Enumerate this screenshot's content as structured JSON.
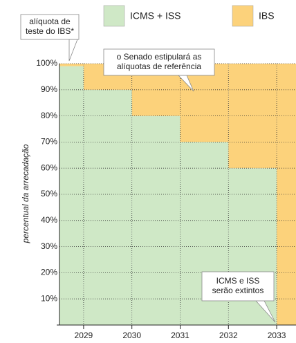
{
  "chart_data": {
    "type": "step-area",
    "y_label": "percentual da arrecadação",
    "x": [
      2028.5,
      2029,
      2030,
      2031,
      2032,
      2033
    ],
    "series": [
      {
        "name": "ICMS + ISS",
        "color": "#cfe8c6",
        "values": [
          99,
          90,
          80,
          70,
          60,
          0
        ]
      },
      {
        "name": "IBS",
        "color": "#fcd27b",
        "values": [
          1,
          10,
          20,
          30,
          40,
          100
        ]
      }
    ],
    "xlim": [
      2028.5,
      2033.4
    ],
    "ylim": [
      0,
      100
    ],
    "xticks": [
      2029,
      2030,
      2031,
      2032,
      2033
    ],
    "yticks": [
      {
        "value": 10,
        "label": "10%"
      },
      {
        "value": 20,
        "label": "20%"
      },
      {
        "value": 30,
        "label": "30%"
      },
      {
        "value": 40,
        "label": "40%"
      },
      {
        "value": 50,
        "label": "50%"
      },
      {
        "value": 60,
        "label": "60%"
      },
      {
        "value": 70,
        "label": "70%"
      },
      {
        "value": 80,
        "label": "80%"
      },
      {
        "value": 90,
        "label": "90%"
      },
      {
        "value": 100,
        "label": "100%"
      }
    ],
    "grid": true,
    "legend": "top",
    "annotations": [
      {
        "lines": [
          "alíquota de",
          "teste do IBS*"
        ]
      },
      {
        "lines": [
          "o Senado estipulará as",
          "alíquotas de referência"
        ]
      },
      {
        "lines": [
          "ICMS e ISS",
          "serão extintos"
        ]
      }
    ]
  }
}
